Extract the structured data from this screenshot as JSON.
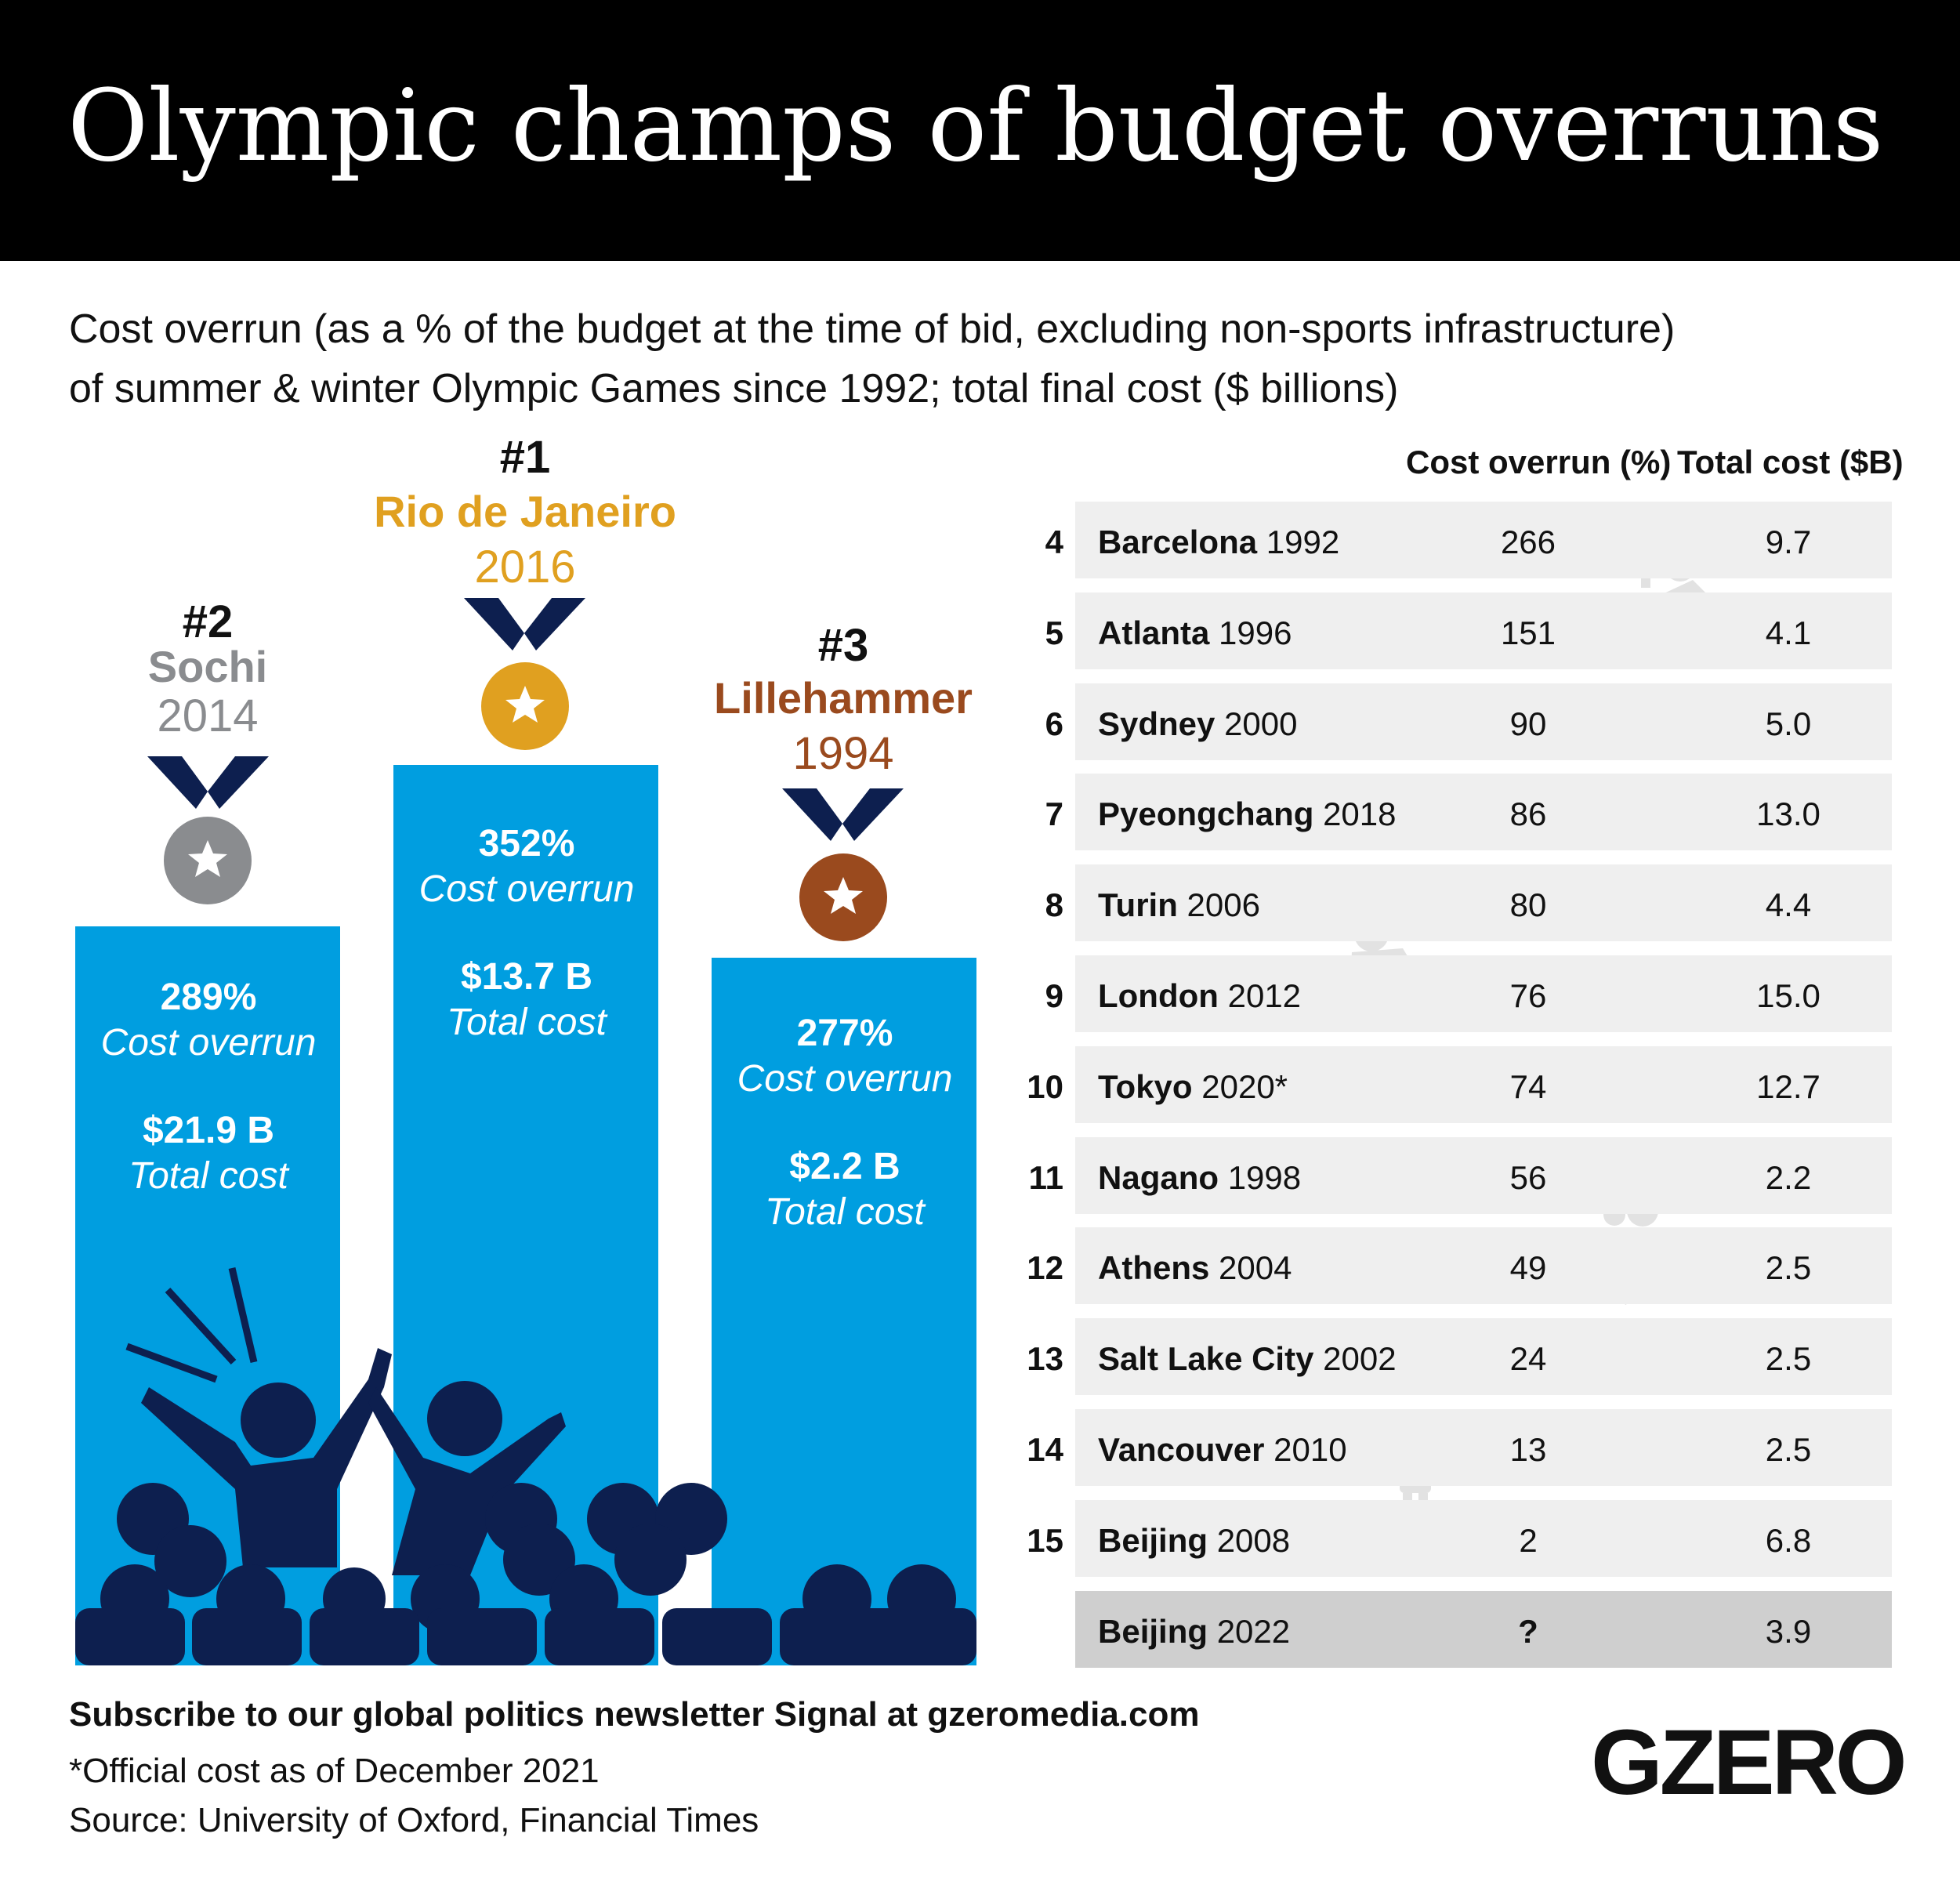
{
  "header": {
    "title": "Olympic champs of budget overruns"
  },
  "subtitle": {
    "line1": "Cost overrun (as a % of the budget at the time of bid, excluding non-sports infrastructure)",
    "line2": "of summer & winter Olympic Games since 1992; total final cost ($ billions)"
  },
  "colors": {
    "bar": "#009ee0",
    "gold": "#e0a020",
    "silver": "#8a8c8f",
    "bronze": "#9a4a1e",
    "navy": "#0d1f4f",
    "row_bg": "#efefef",
    "row_last_bg": "#cfcfcf"
  },
  "podium": [
    {
      "rank": "#2",
      "city": "Sochi",
      "year": "2014",
      "overrun": "289%",
      "overrun_label": "Cost overrun",
      "cost": "$21.9 B",
      "cost_label": "Total cost",
      "medal": "silver",
      "medal_icon": "star-icon"
    },
    {
      "rank": "#1",
      "city": "Rio de Janeiro",
      "year": "2016",
      "overrun": "352%",
      "overrun_label": "Cost overrun",
      "cost": "$13.7 B",
      "cost_label": "Total cost",
      "medal": "gold",
      "medal_icon": "star-icon"
    },
    {
      "rank": "#3",
      "city": "Lillehammer",
      "year": "1994",
      "overrun": "277%",
      "overrun_label": "Cost overrun",
      "cost": "$2.2 B",
      "cost_label": "Total cost",
      "medal": "bronze",
      "medal_icon": "star-icon"
    }
  ],
  "table": {
    "headers": {
      "overrun": "Cost overrun (%)",
      "cost": "Total cost ($B)"
    },
    "rows": [
      {
        "rank": "4",
        "city": "Barcelona",
        "year": "1992",
        "overrun": "266",
        "cost": "9.7"
      },
      {
        "rank": "5",
        "city": "Atlanta",
        "year": "1996",
        "overrun": "151",
        "cost": "4.1"
      },
      {
        "rank": "6",
        "city": "Sydney",
        "year": "2000",
        "overrun": "90",
        "cost": "5.0"
      },
      {
        "rank": "7",
        "city": "Pyeongchang",
        "year": "2018",
        "overrun": "86",
        "cost": "13.0"
      },
      {
        "rank": "8",
        "city": "Turin",
        "year": "2006",
        "overrun": "80",
        "cost": "4.4"
      },
      {
        "rank": "9",
        "city": "London",
        "year": "2012",
        "overrun": "76",
        "cost": "15.0"
      },
      {
        "rank": "10",
        "city": "Tokyo",
        "year": "2020*",
        "overrun": "74",
        "cost": "12.7"
      },
      {
        "rank": "11",
        "city": "Nagano",
        "year": "1998",
        "overrun": "56",
        "cost": "2.2"
      },
      {
        "rank": "12",
        "city": "Athens",
        "year": "2004",
        "overrun": "49",
        "cost": "2.5"
      },
      {
        "rank": "13",
        "city": "Salt Lake City",
        "year": "2002",
        "overrun": "24",
        "cost": "2.5"
      },
      {
        "rank": "14",
        "city": "Vancouver",
        "year": "2010",
        "overrun": "13",
        "cost": "2.5"
      },
      {
        "rank": "15",
        "city": "Beijing",
        "year": "2008",
        "overrun": "2",
        "cost": "6.8"
      },
      {
        "rank": "",
        "city": "Beijing",
        "year": "2022",
        "overrun": "?",
        "cost": "3.9"
      }
    ]
  },
  "chart_data": {
    "type": "table",
    "columns": [
      "Rank",
      "Games",
      "Cost overrun (%)",
      "Total cost ($B)"
    ],
    "rows": [
      [
        "1",
        "Rio de Janeiro 2016",
        352,
        13.7
      ],
      [
        "2",
        "Sochi 2014",
        289,
        21.9
      ],
      [
        "3",
        "Lillehammer 1994",
        277,
        2.2
      ],
      [
        "4",
        "Barcelona 1992",
        266,
        9.7
      ],
      [
        "5",
        "Atlanta 1996",
        151,
        4.1
      ],
      [
        "6",
        "Sydney 2000",
        90,
        5.0
      ],
      [
        "7",
        "Pyeongchang 2018",
        86,
        13.0
      ],
      [
        "8",
        "Turin 2006",
        80,
        4.4
      ],
      [
        "9",
        "London 2012",
        76,
        15.0
      ],
      [
        "10",
        "Tokyo 2020*",
        74,
        12.7
      ],
      [
        "11",
        "Nagano 1998",
        56,
        2.2
      ],
      [
        "12",
        "Athens 2004",
        49,
        2.5
      ],
      [
        "13",
        "Salt Lake City 2002",
        24,
        2.5
      ],
      [
        "14",
        "Vancouver 2010",
        13,
        2.5
      ],
      [
        "15",
        "Beijing 2008",
        2,
        6.8
      ],
      [
        "",
        "Beijing 2022",
        "?",
        3.9
      ]
    ]
  },
  "footer": {
    "subscribe": "Subscribe to our global politics newsletter Signal at gzeromedia.com",
    "note": "*Official cost as of December 2021",
    "source": "Source: University of Oxford, Financial Times",
    "logo": "GZERO"
  }
}
